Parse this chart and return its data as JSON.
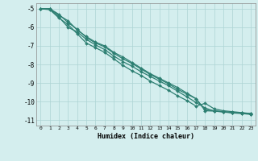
{
  "xlabel": "Humidex (Indice chaleur)",
  "bg_color": "#d4eeee",
  "grid_color": "#add4d4",
  "line_color": "#2d7f72",
  "xlim": [
    -0.5,
    23.5
  ],
  "ylim": [
    -11.3,
    -4.7
  ],
  "xticks": [
    0,
    1,
    2,
    3,
    4,
    5,
    6,
    7,
    8,
    9,
    10,
    11,
    12,
    13,
    14,
    15,
    16,
    17,
    18,
    19,
    20,
    21,
    22,
    23
  ],
  "yticks": [
    -5,
    -6,
    -7,
    -8,
    -9,
    -10,
    -11
  ],
  "series": [
    [
      -5.0,
      -5.0,
      -5.3,
      -5.75,
      -6.1,
      -6.55,
      -6.85,
      -7.05,
      -7.4,
      -7.7,
      -7.95,
      -8.25,
      -8.55,
      -8.8,
      -9.05,
      -9.35,
      -9.6,
      -9.85,
      -10.45,
      -10.5,
      -10.55,
      -10.6,
      -10.62,
      -10.65
    ],
    [
      -5.0,
      -5.05,
      -5.5,
      -5.85,
      -6.35,
      -6.85,
      -7.1,
      -7.35,
      -7.7,
      -8.05,
      -8.35,
      -8.6,
      -8.9,
      -9.15,
      -9.4,
      -9.7,
      -9.95,
      -10.25,
      -10.1,
      -10.4,
      -10.5,
      -10.55,
      -10.6,
      -10.65
    ],
    [
      -5.0,
      -5.0,
      -5.45,
      -6.0,
      -6.25,
      -6.65,
      -6.95,
      -7.2,
      -7.55,
      -7.85,
      -8.1,
      -8.4,
      -8.65,
      -8.9,
      -9.15,
      -9.45,
      -9.75,
      -10.05,
      -10.35,
      -10.52,
      -10.57,
      -10.62,
      -10.65,
      -10.7
    ],
    [
      -5.0,
      -5.0,
      -5.35,
      -5.65,
      -6.15,
      -6.5,
      -6.8,
      -7.0,
      -7.35,
      -7.6,
      -7.9,
      -8.2,
      -8.5,
      -8.75,
      -9.0,
      -9.25,
      -9.55,
      -9.85,
      -10.5,
      -10.52,
      -10.55,
      -10.6,
      -10.63,
      -10.68
    ]
  ]
}
